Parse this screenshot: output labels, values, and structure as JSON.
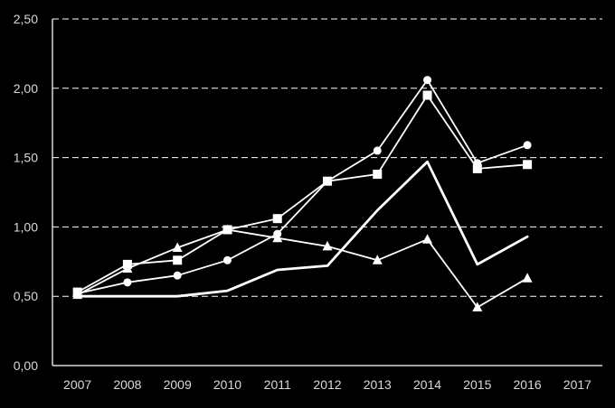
{
  "chart_data": {
    "type": "line",
    "x": [
      "2007",
      "2008",
      "2009",
      "2010",
      "2011",
      "2012",
      "2013",
      "2014",
      "2015",
      "2016",
      "2017"
    ],
    "ylim": [
      0,
      2.5
    ],
    "y_ticks": [
      "0,00",
      "0,50",
      "1,00",
      "1,50",
      "2,00",
      "2,50"
    ],
    "grid": true,
    "legend": "none",
    "series": [
      {
        "marker": "circle",
        "values": [
          0.52,
          0.6,
          0.65,
          0.76,
          0.95,
          1.33,
          1.55,
          2.06,
          1.46,
          1.59,
          null
        ]
      },
      {
        "marker": "square",
        "values": [
          0.53,
          0.73,
          0.76,
          0.98,
          1.06,
          1.33,
          1.38,
          1.95,
          1.42,
          1.45,
          null
        ]
      },
      {
        "marker": "triangle",
        "values": [
          0.51,
          0.7,
          0.85,
          0.98,
          0.92,
          0.86,
          0.76,
          0.91,
          0.42,
          0.63,
          null
        ]
      },
      {
        "marker": "none",
        "values": [
          0.5,
          0.5,
          0.5,
          0.54,
          0.69,
          0.72,
          1.12,
          1.47,
          0.73,
          0.93,
          null
        ]
      }
    ],
    "colors": {
      "background": "#000000",
      "lines": "#ffffff",
      "grid": "#ffffff",
      "text": "#d9d9d9"
    }
  }
}
